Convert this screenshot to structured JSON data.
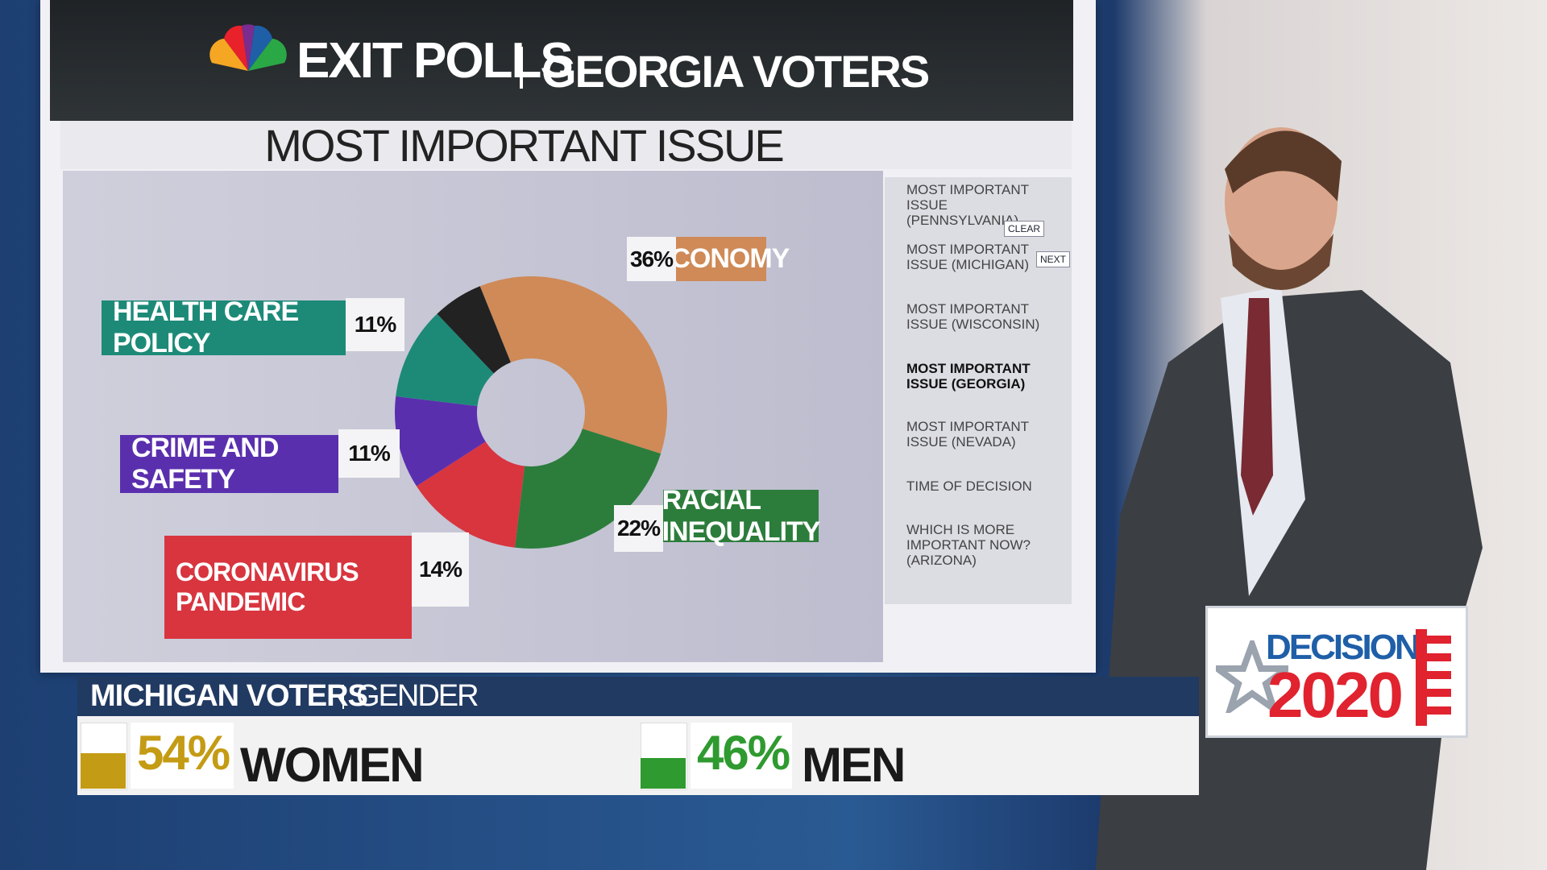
{
  "header": {
    "title": "EXIT POLLS",
    "subtitle": "GEORGIA VOTERS"
  },
  "chart_data": {
    "type": "pie",
    "title": "MOST IMPORTANT ISSUE",
    "categories": [
      "ECONOMY",
      "RACIAL INEQUALITY",
      "CORONAVIRUS PANDEMIC",
      "CRIME AND SAFETY",
      "HEALTH CARE POLICY",
      null
    ],
    "values": [
      36,
      22,
      14,
      11,
      11,
      6
    ],
    "value_labels": [
      "36%",
      "22%",
      "14%",
      "11%",
      "11%",
      null
    ],
    "colors": [
      "#cf8a57",
      "#2c7d3b",
      "#d8353f",
      "#5a2fae",
      "#1d8a78",
      "#222222"
    ]
  },
  "sidebar": {
    "items": [
      "MOST IMPORTANT ISSUE (PENNSYLVANIA)",
      "MOST IMPORTANT ISSUE (MICHIGAN)",
      "MOST IMPORTANT ISSUE (WISCONSIN)",
      "MOST IMPORTANT ISSUE (GEORGIA)",
      "MOST IMPORTANT ISSUE (NEVADA)",
      "TIME OF DECISION",
      "WHICH IS MORE IMPORTANT NOW? (ARIZONA)"
    ],
    "buttons": [
      "CLEAR",
      "NEXT"
    ]
  },
  "lower_third": {
    "title": "MICHIGAN VOTERS",
    "topic": "GENDER",
    "entries": [
      {
        "name": "WOMEN",
        "value": 54,
        "value_label": "54%",
        "color": "#c49b14"
      },
      {
        "name": "MEN",
        "value": 46,
        "value_label": "46%",
        "color": "#2f9a2f"
      }
    ]
  },
  "logo": {
    "line1": "DECISION",
    "line2": "2020"
  }
}
